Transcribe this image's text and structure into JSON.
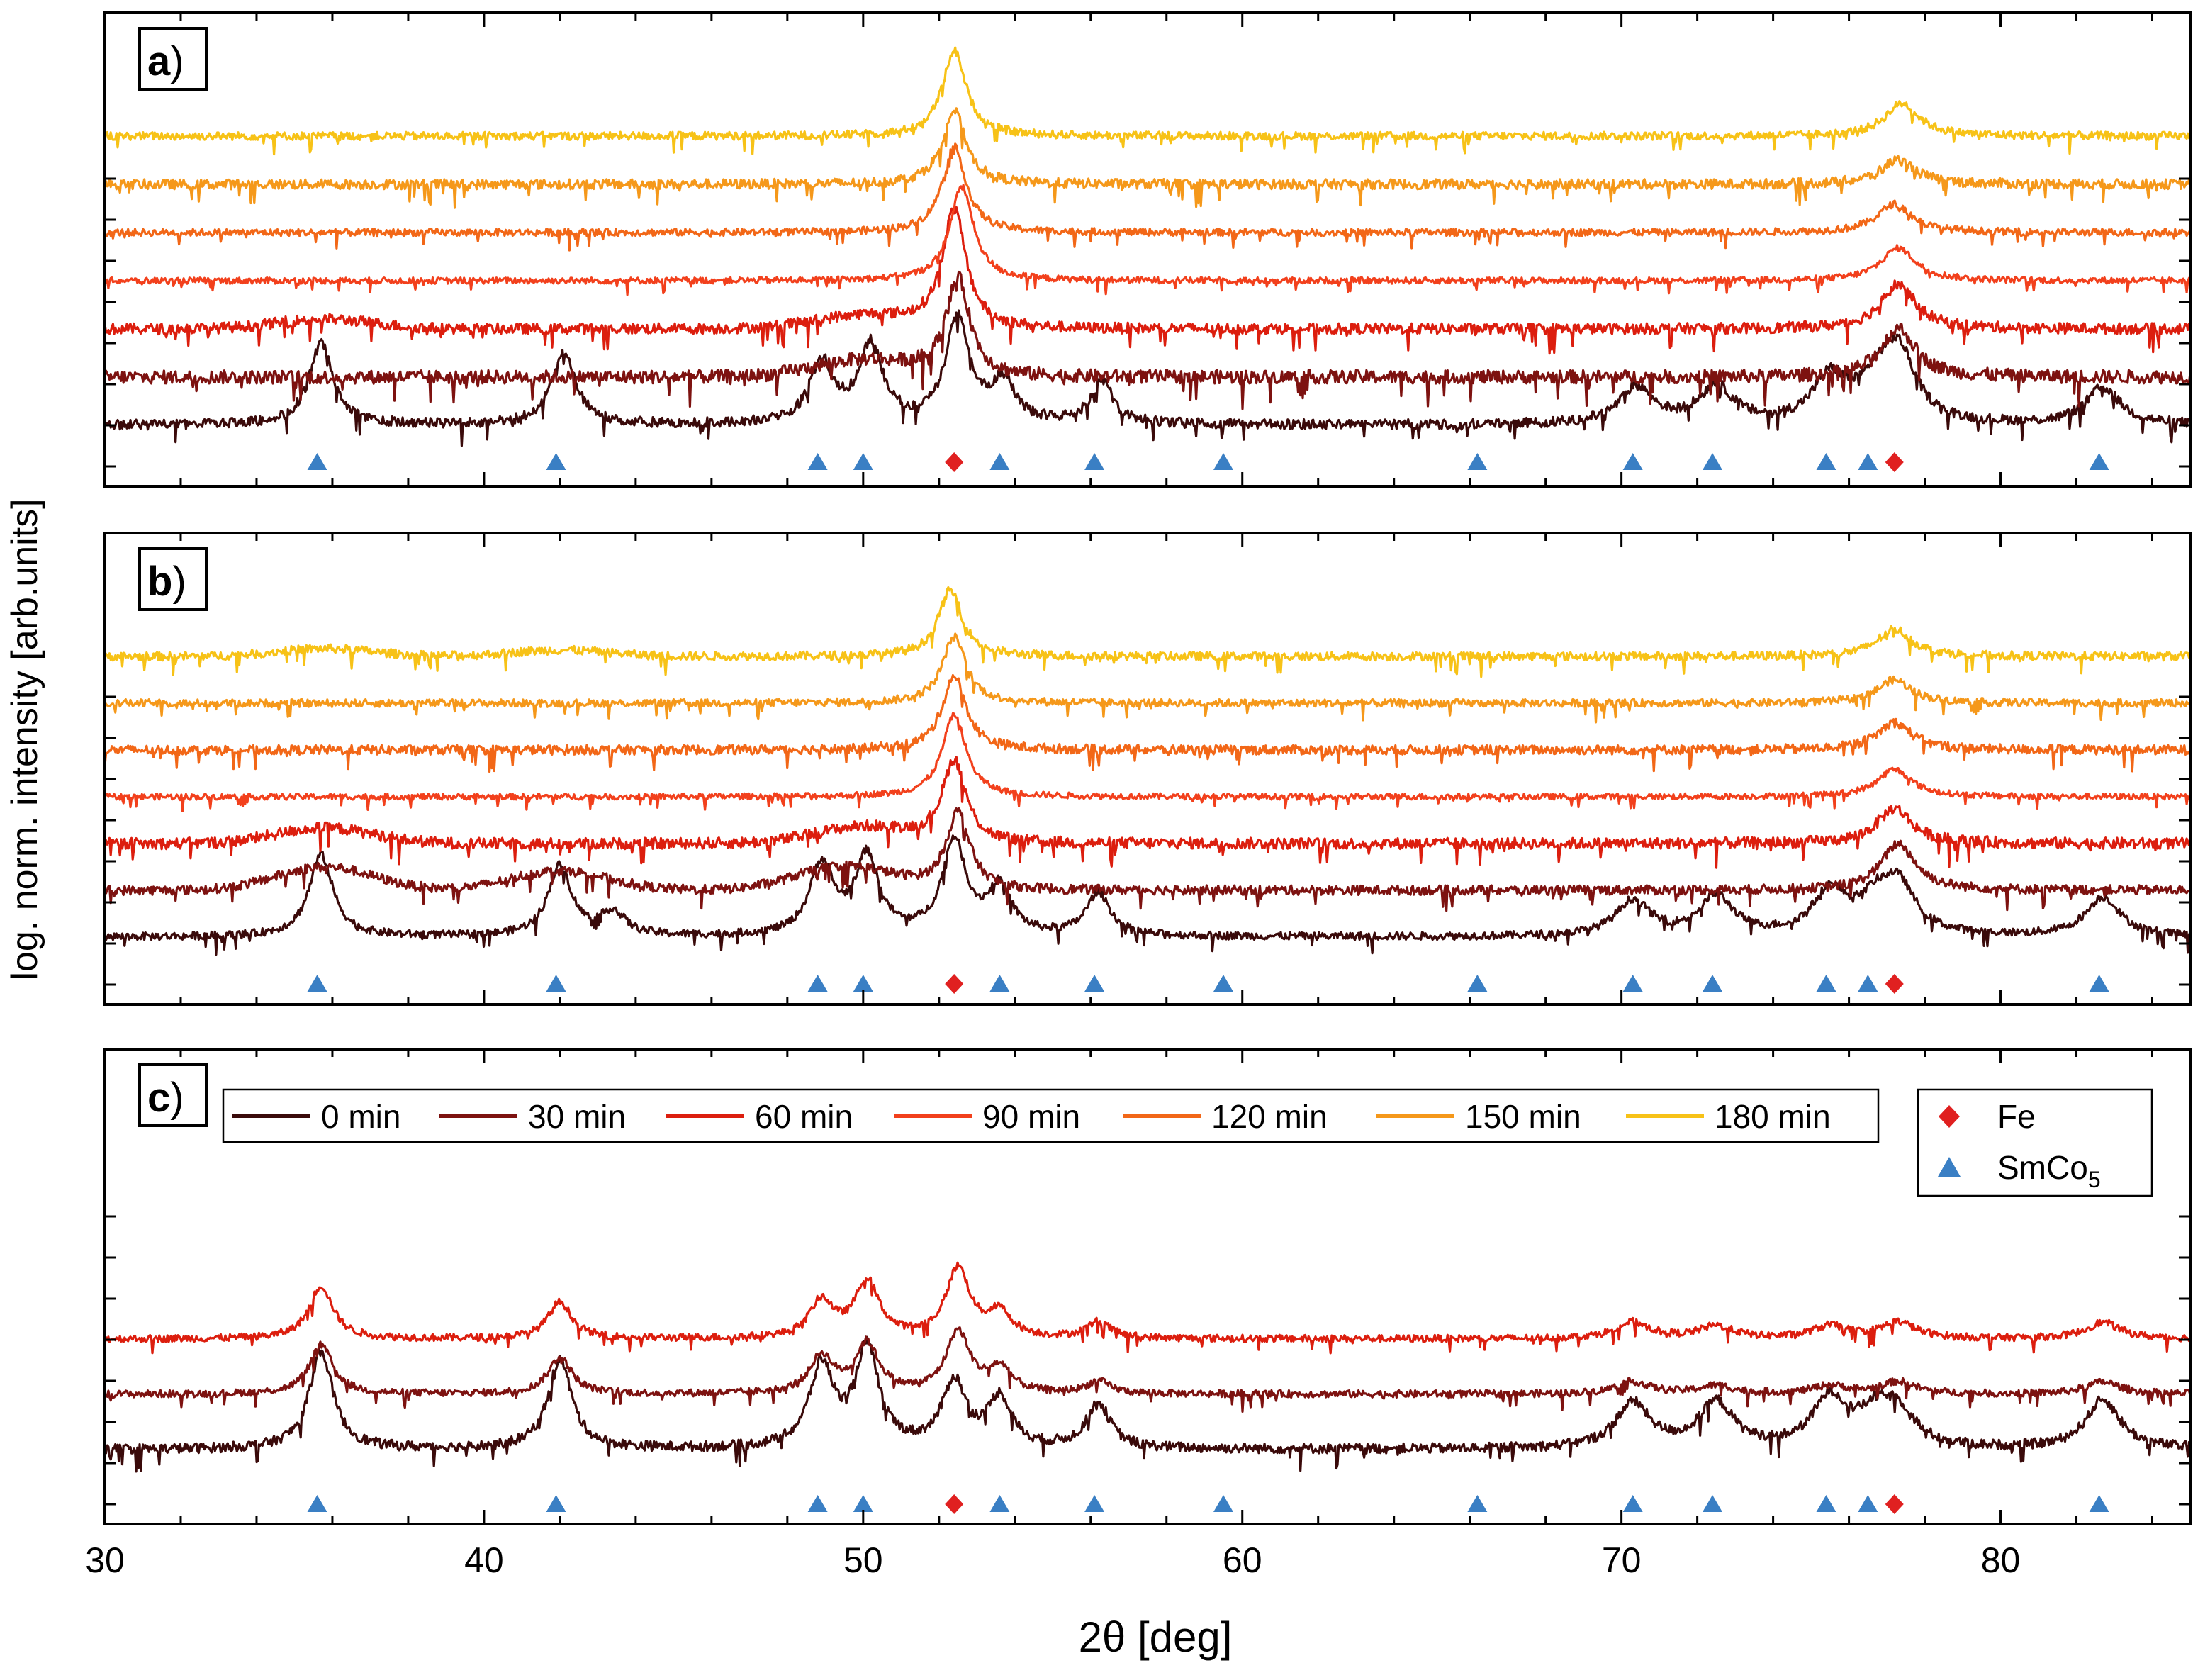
{
  "figure": {
    "ylabel": "log. norm. intensity [arb.units]",
    "xlabel": "2θ [deg]",
    "xlim": [
      30,
      85
    ],
    "xticks": [
      30,
      40,
      50,
      60,
      70,
      80
    ]
  },
  "colors": {
    "0 min": "#3a0a0a",
    "30 min": "#7d1210",
    "60 min": "#dc1e0e",
    "90 min": "#f2401c",
    "120 min": "#f26717",
    "150 min": "#f5981a",
    "180 min": "#f7c217",
    "Fe": "#e02020",
    "SmCo5": "#3a7fc4"
  },
  "legend": {
    "series_labels": [
      "0 min",
      "30 min",
      "60 min",
      "90 min",
      "120 min",
      "150 min",
      "180 min"
    ],
    "markers": [
      {
        "key": "Fe",
        "label": "Fe",
        "marker": "diamond"
      },
      {
        "key": "SmCo5",
        "label": "SmCo",
        "subscript": "5",
        "marker": "triangle"
      }
    ]
  },
  "chart_data": [
    {
      "type": "line",
      "panel": "a",
      "label_letter": "a",
      "label_paren": ")",
      "xlabel": "2θ [deg]",
      "ylabel": "log. norm. intensity [arb.units]",
      "xlim": [
        30,
        85
      ],
      "y_scale": "log (offset stack, bottom = 0 min)",
      "series": [
        {
          "name": "0 min",
          "peaks": [
            [
              35.7,
              1.0
            ],
            [
              42.1,
              0.9
            ],
            [
              48.9,
              0.75
            ],
            [
              50.2,
              0.95
            ],
            [
              52.5,
              1.3
            ],
            [
              53.7,
              0.5
            ],
            [
              56.3,
              0.5
            ],
            [
              70.4,
              0.45
            ],
            [
              72.5,
              0.45
            ],
            [
              75.5,
              0.55
            ],
            [
              76.7,
              0.35
            ],
            [
              77.3,
              0.85
            ],
            [
              82.7,
              0.45
            ]
          ],
          "noise": 0.55
        },
        {
          "name": "30 min",
          "peaks": [
            [
              52.5,
              1.2
            ],
            [
              77.3,
              0.6
            ]
          ],
          "broad": [
            [
              50.0,
              0.2
            ]
          ],
          "noise": 0.75
        },
        {
          "name": "60 min",
          "peaks": [
            [
              52.4,
              1.45
            ],
            [
              77.3,
              0.55
            ]
          ],
          "broad": [
            [
              35.8,
              0.12
            ],
            [
              50.0,
              0.15
            ]
          ],
          "noise": 0.6
        },
        {
          "name": "90 min",
          "peaks": [
            [
              52.6,
              1.15
            ],
            [
              77.3,
              0.4
            ]
          ],
          "noise": 0.35
        },
        {
          "name": "120 min",
          "peaks": [
            [
              52.4,
              1.05
            ],
            [
              77.2,
              0.35
            ]
          ],
          "noise": 0.4
        },
        {
          "name": "150 min",
          "peaks": [
            [
              52.4,
              0.9
            ],
            [
              77.3,
              0.3
            ]
          ],
          "noise": 0.55
        },
        {
          "name": "180 min",
          "peaks": [
            [
              52.4,
              1.05
            ],
            [
              77.4,
              0.4
            ]
          ],
          "noise": 0.45
        }
      ],
      "reference_markers": {
        "SmCo5": [
          35.6,
          41.9,
          48.8,
          50.0,
          53.6,
          56.1,
          59.5,
          66.2,
          70.3,
          72.4,
          75.4,
          76.5,
          82.6
        ],
        "Fe": [
          52.4,
          77.2
        ]
      }
    },
    {
      "type": "line",
      "panel": "b",
      "label_letter": "b",
      "label_paren": ")",
      "xlabel": "2θ [deg]",
      "ylabel": "log. norm. intensity [arb.units]",
      "xlim": [
        30,
        85
      ],
      "y_scale": "log (offset stack, bottom = 0 min)",
      "series": [
        {
          "name": "0 min",
          "peaks": [
            [
              35.7,
              1.05
            ],
            [
              42.0,
              0.9
            ],
            [
              43.4,
              0.3
            ],
            [
              48.9,
              0.9
            ],
            [
              50.1,
              1.0
            ],
            [
              52.4,
              1.2
            ],
            [
              53.6,
              0.6
            ],
            [
              56.2,
              0.55
            ],
            [
              70.3,
              0.45
            ],
            [
              72.5,
              0.5
            ],
            [
              75.5,
              0.55
            ],
            [
              76.7,
              0.35
            ],
            [
              77.3,
              0.6
            ],
            [
              82.7,
              0.5
            ]
          ],
          "noise": 0.45
        },
        {
          "name": "30 min",
          "peaks": [
            [
              52.5,
              1.0
            ],
            [
              77.3,
              0.6
            ]
          ],
          "broad": [
            [
              35.8,
              0.3
            ],
            [
              42.0,
              0.25
            ],
            [
              49.5,
              0.3
            ]
          ],
          "noise": 0.55
        },
        {
          "name": "60 min",
          "peaks": [
            [
              52.4,
              1.05
            ],
            [
              77.2,
              0.45
            ]
          ],
          "broad": [
            [
              35.8,
              0.2
            ],
            [
              50.0,
              0.2
            ]
          ],
          "noise": 0.65
        },
        {
          "name": "90 min",
          "peaks": [
            [
              52.4,
              1.05
            ],
            [
              77.2,
              0.35
            ]
          ],
          "noise": 0.35
        },
        {
          "name": "120 min",
          "peaks": [
            [
              52.4,
              0.95
            ],
            [
              77.2,
              0.35
            ]
          ],
          "noise": 0.55
        },
        {
          "name": "150 min",
          "peaks": [
            [
              52.4,
              0.85
            ],
            [
              77.2,
              0.3
            ]
          ],
          "noise": 0.45
        },
        {
          "name": "180 min",
          "peaks": [
            [
              52.3,
              0.85
            ],
            [
              77.2,
              0.35
            ]
          ],
          "broad": [
            [
              35.8,
              0.1
            ],
            [
              42.0,
              0.08
            ]
          ],
          "noise": 0.5
        }
      ],
      "reference_markers": {
        "SmCo5": [
          35.6,
          41.9,
          48.8,
          50.0,
          53.6,
          56.1,
          59.5,
          66.2,
          70.3,
          72.4,
          75.4,
          76.5,
          82.6
        ],
        "Fe": [
          52.4,
          77.2
        ]
      }
    },
    {
      "type": "line",
      "panel": "c",
      "label_letter": "c",
      "label_paren": ")",
      "xlabel": "2θ [deg]",
      "ylabel": "log. norm. intensity [arb.units]",
      "xlim": [
        30,
        85
      ],
      "y_scale": "log (offset stack, bottom = 0 min)",
      "series": [
        {
          "name": "0 min",
          "peaks": [
            [
              35.7,
              1.2
            ],
            [
              42.0,
              1.1
            ],
            [
              48.9,
              1.0
            ],
            [
              50.1,
              1.2
            ],
            [
              52.4,
              0.8
            ],
            [
              53.6,
              0.6
            ],
            [
              56.2,
              0.55
            ],
            [
              70.3,
              0.55
            ],
            [
              72.5,
              0.55
            ],
            [
              75.5,
              0.6
            ],
            [
              76.7,
              0.35
            ],
            [
              77.3,
              0.4
            ],
            [
              82.7,
              0.6
            ]
          ],
          "noise": 0.55
        },
        {
          "name": "30 min",
          "peaks": [
            [
              35.7,
              0.6
            ],
            [
              42.0,
              0.45
            ],
            [
              48.9,
              0.45
            ],
            [
              50.1,
              0.6
            ],
            [
              52.5,
              0.75
            ],
            [
              53.6,
              0.3
            ],
            [
              56.2,
              0.15
            ],
            [
              70.3,
              0.15
            ],
            [
              72.5,
              0.1
            ],
            [
              75.5,
              0.1
            ],
            [
              77.3,
              0.15
            ],
            [
              82.7,
              0.15
            ]
          ],
          "noise": 0.4
        },
        {
          "name": "60 min",
          "peaks": [
            [
              35.7,
              0.65
            ],
            [
              42.0,
              0.45
            ],
            [
              48.9,
              0.45
            ],
            [
              50.1,
              0.7
            ],
            [
              52.5,
              0.85
            ],
            [
              53.6,
              0.3
            ],
            [
              56.2,
              0.2
            ],
            [
              70.3,
              0.2
            ],
            [
              72.5,
              0.15
            ],
            [
              75.5,
              0.15
            ],
            [
              77.3,
              0.2
            ],
            [
              82.7,
              0.2
            ]
          ],
          "noise": 0.4
        }
      ],
      "reference_markers": {
        "SmCo5": [
          35.6,
          41.9,
          48.8,
          50.0,
          53.6,
          56.1,
          59.5,
          66.2,
          70.3,
          72.4,
          75.4,
          76.5,
          82.6
        ],
        "Fe": [
          52.4,
          77.2
        ]
      }
    }
  ]
}
